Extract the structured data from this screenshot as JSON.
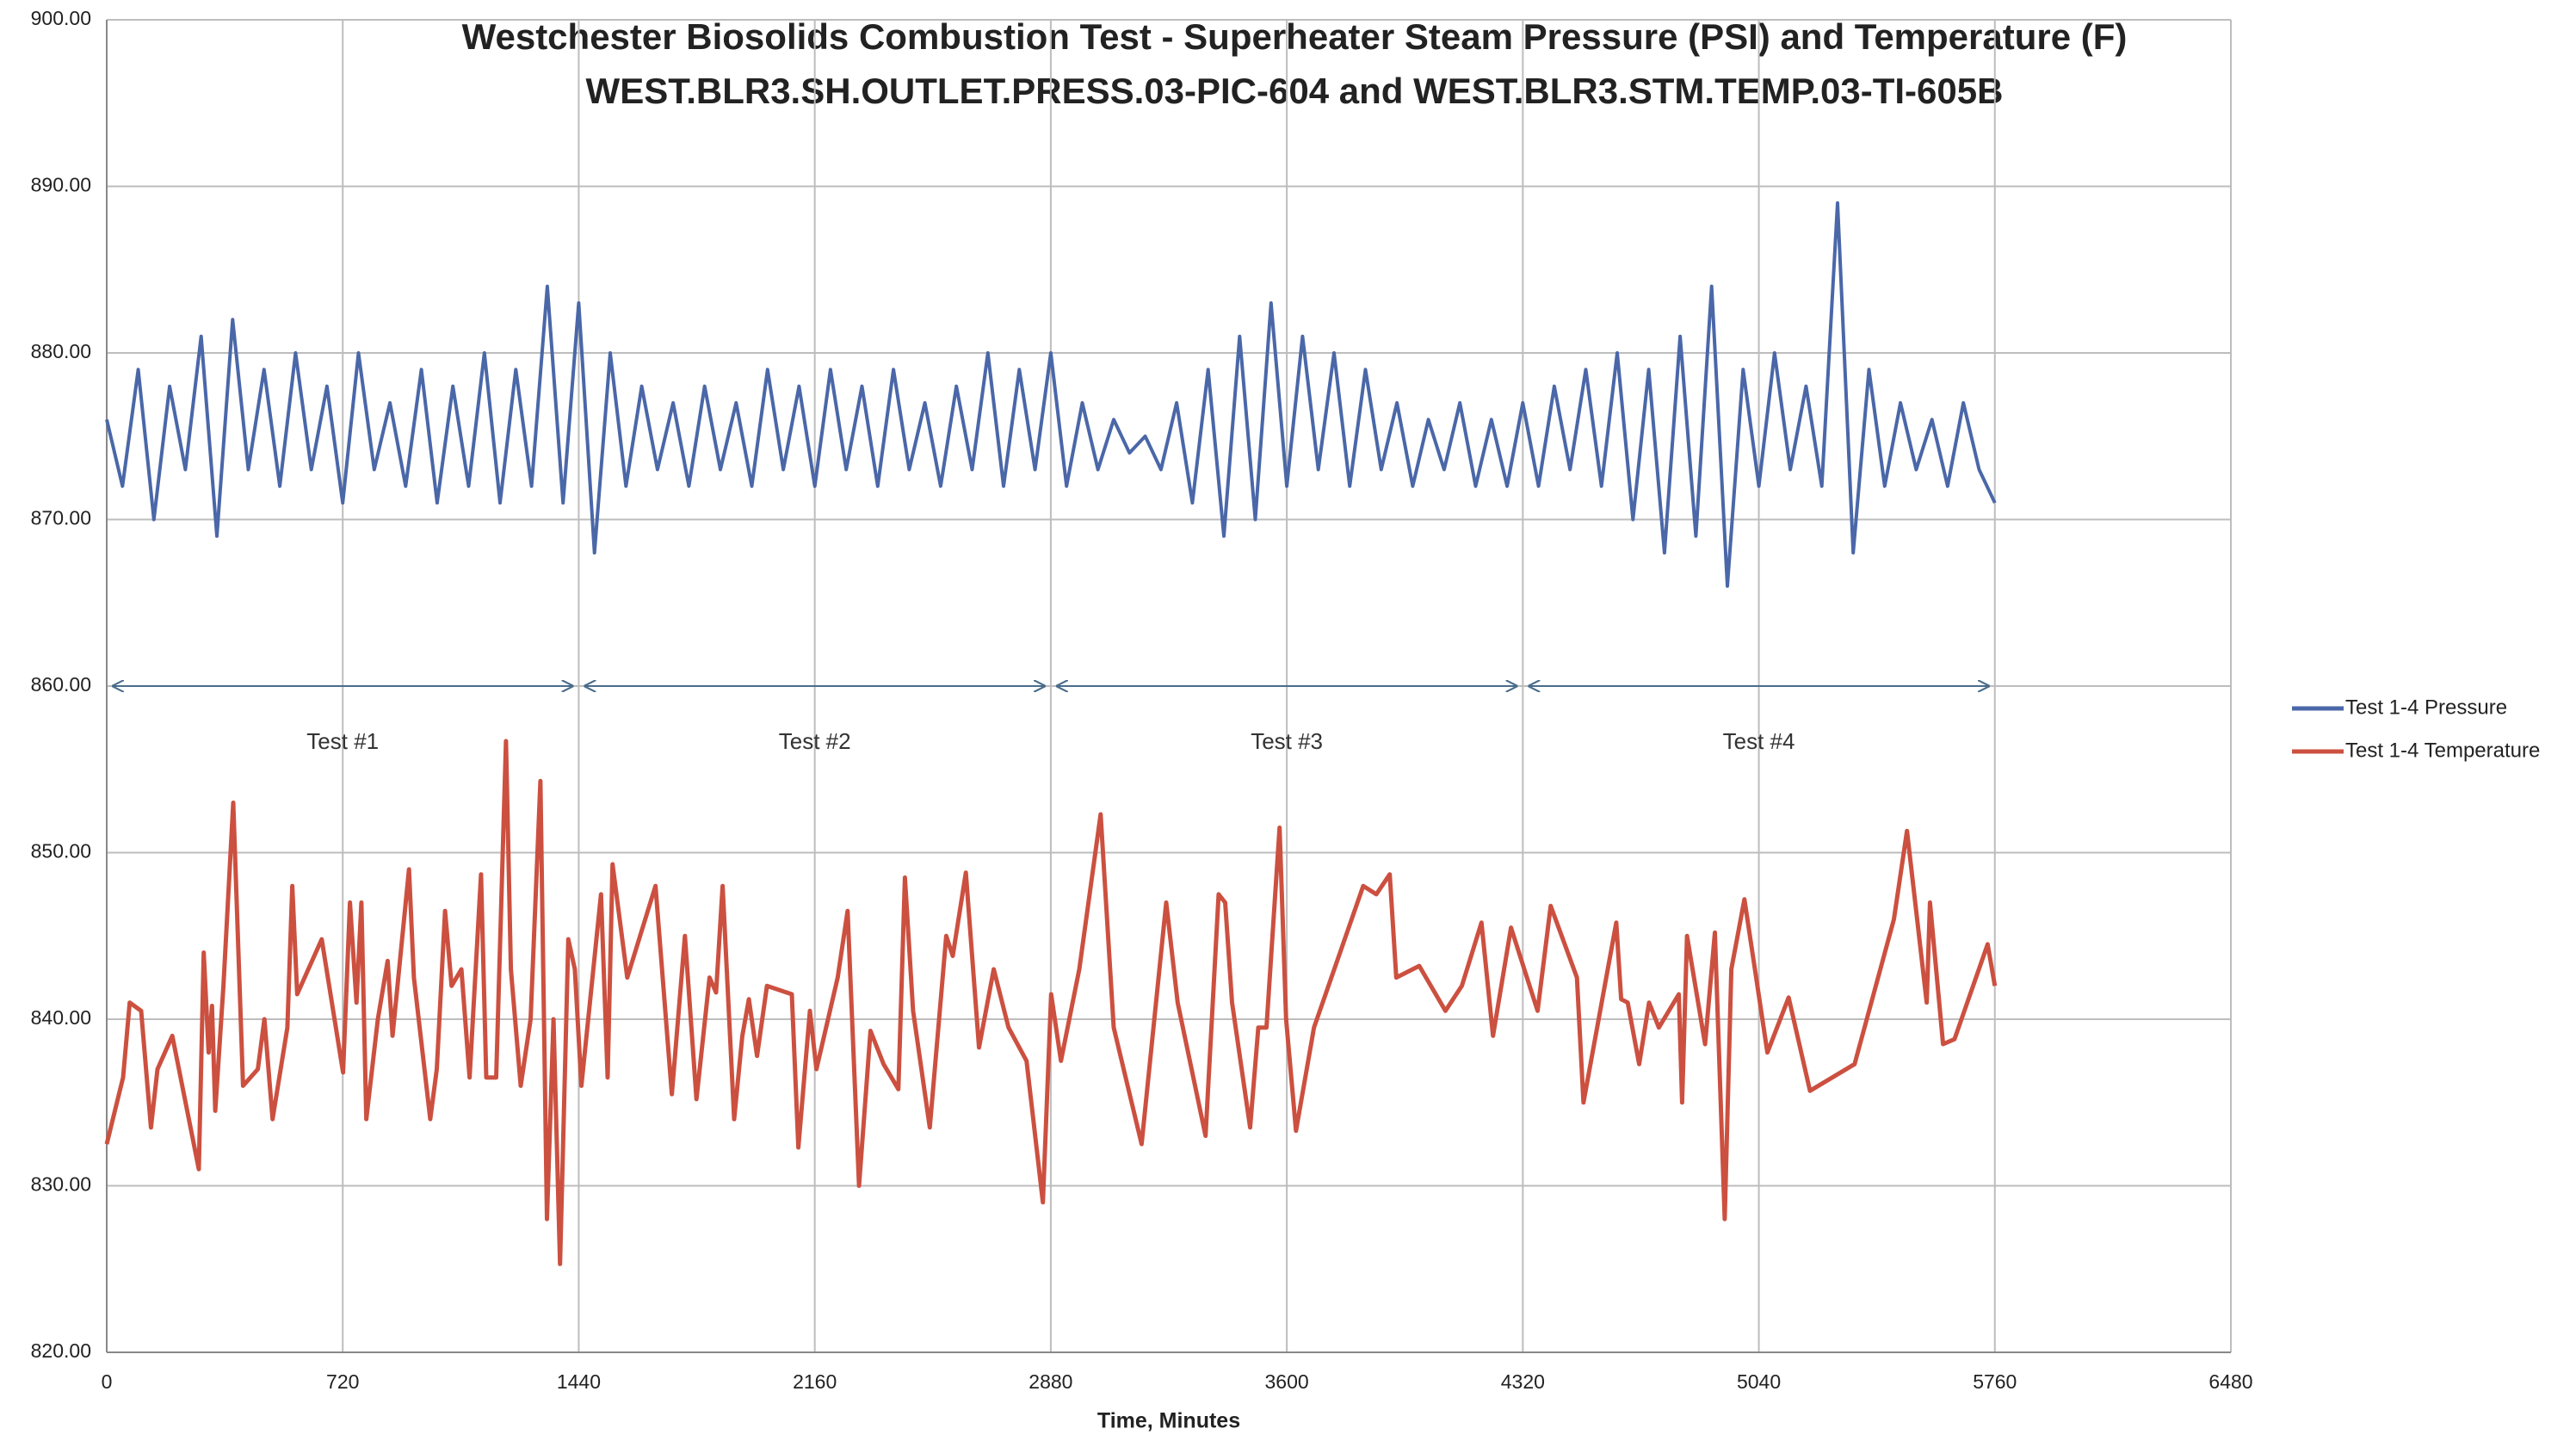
{
  "chart_data": {
    "type": "line",
    "title": "Westchester Biosolids Combustion Test - Superheater Steam Pressure (PSI) and Temperature (F)",
    "subtitle": "WEST.BLR3.SH.OUTLET.PRESS.03-PIC-604 and WEST.BLR3.STM.TEMP.03-TI-605B",
    "x_label": "Time, Minutes",
    "xlim": [
      0,
      6480
    ],
    "xticks": [
      0,
      720,
      1440,
      2160,
      2880,
      3600,
      4320,
      5040,
      5760,
      6480
    ],
    "ylim": [
      820,
      900
    ],
    "yticks": [
      {
        "value": 820,
        "label": "820.00"
      },
      {
        "value": 830,
        "label": "830.00"
      },
      {
        "value": 840,
        "label": "840.00"
      },
      {
        "value": 850,
        "label": "850.00"
      },
      {
        "value": 860,
        "label": "860.00"
      },
      {
        "value": 870,
        "label": "870.00"
      },
      {
        "value": 880,
        "label": "880.00"
      },
      {
        "value": 890,
        "label": "890.00"
      },
      {
        "value": 900,
        "label": "900.00"
      }
    ],
    "grid": true,
    "legend": "right",
    "series": [
      {
        "name": "Test 1-4 Pressure",
        "color": "#4a67a8",
        "x": [
          0,
          48,
          96,
          144,
          192,
          240,
          288,
          336,
          384,
          432,
          480,
          528,
          576,
          624,
          672,
          720,
          768,
          816,
          864,
          912,
          960,
          1008,
          1056,
          1104,
          1152,
          1200,
          1248,
          1296,
          1344,
          1392,
          1440,
          1488,
          1536,
          1584,
          1632,
          1680,
          1728,
          1776,
          1824,
          1872,
          1920,
          1968,
          2016,
          2064,
          2112,
          2160,
          2208,
          2256,
          2304,
          2352,
          2400,
          2448,
          2496,
          2544,
          2592,
          2640,
          2688,
          2736,
          2784,
          2832,
          2880,
          2928,
          2976,
          3024,
          3072,
          3120,
          3168,
          3216,
          3264,
          3312,
          3360,
          3408,
          3456,
          3504,
          3552,
          3600,
          3648,
          3696,
          3744,
          3792,
          3840,
          3888,
          3936,
          3984,
          4032,
          4080,
          4128,
          4176,
          4224,
          4272,
          4320,
          4368,
          4416,
          4464,
          4512,
          4560,
          4608,
          4656,
          4704,
          4752,
          4800,
          4848,
          4896,
          4944,
          4992,
          5040,
          5088,
          5136,
          5184,
          5232,
          5280,
          5328,
          5376,
          5424,
          5472,
          5520,
          5568,
          5616,
          5664,
          5712,
          5760
        ],
        "values": [
          876,
          872,
          879,
          870,
          878,
          873,
          881,
          869,
          882,
          873,
          879,
          872,
          880,
          873,
          878,
          871,
          880,
          873,
          877,
          872,
          879,
          871,
          878,
          872,
          880,
          871,
          879,
          872,
          884,
          871,
          883,
          868,
          880,
          872,
          878,
          873,
          877,
          872,
          878,
          873,
          877,
          872,
          879,
          873,
          878,
          872,
          879,
          873,
          878,
          872,
          879,
          873,
          877,
          872,
          878,
          873,
          880,
          872,
          879,
          873,
          880,
          872,
          877,
          873,
          876,
          874,
          875,
          873,
          877,
          871,
          879,
          869,
          881,
          870,
          883,
          872,
          881,
          873,
          880,
          872,
          879,
          873,
          877,
          872,
          876,
          873,
          877,
          872,
          876,
          872,
          877,
          872,
          878,
          873,
          879,
          872,
          880,
          870,
          879,
          868,
          881,
          869,
          884,
          866,
          879,
          872,
          880,
          873,
          878,
          872,
          889,
          868,
          879,
          872,
          877,
          873,
          876,
          872,
          877,
          873,
          871
        ]
      },
      {
        "name": "Test 1-4 Temperature",
        "color": "#cc5040",
        "x": [
          0,
          50,
          70,
          105,
          135,
          155,
          200,
          281,
          296,
          311,
          321,
          331,
          356,
          386,
          416,
          461,
          481,
          506,
          551,
          566,
          581,
          656,
          721,
          742,
          762,
          777,
          792,
          827,
          857,
          872,
          922,
          937,
          987,
          1007,
          1032,
          1052,
          1082,
          1107,
          1142,
          1158,
          1188,
          1218,
          1233,
          1263,
          1293,
          1323,
          1343,
          1363,
          1383,
          1408,
          1428,
          1448,
          1508,
          1528,
          1543,
          1588,
          1674,
          1724,
          1764,
          1799,
          1839,
          1859,
          1879,
          1914,
          1939,
          1959,
          1984,
          2014,
          2090,
          2110,
          2145,
          2165,
          2230,
          2260,
          2295,
          2330,
          2370,
          2415,
          2435,
          2460,
          2511,
          2561,
          2581,
          2621,
          2661,
          2706,
          2751,
          2806,
          2856,
          2881,
          2911,
          2967,
          3032,
          3072,
          3157,
          3232,
          3267,
          3352,
          3392,
          3412,
          3433,
          3488,
          3513,
          3538,
          3578,
          3598,
          3628,
          3683,
          3833,
          3873,
          3914,
          3934,
          4004,
          4084,
          4134,
          4194,
          4229,
          4284,
          4365,
          4405,
          4485,
          4505,
          4605,
          4620,
          4640,
          4675,
          4705,
          4735,
          4796,
          4806,
          4821,
          4876,
          4906,
          4936,
          4956,
          4996,
          5066,
          5131,
          5196,
          5332,
          5452,
          5492,
          5552,
          5562,
          5602,
          5637,
          5738,
          5760
        ],
        "values": [
          832.5,
          836.5,
          841,
          840.5,
          833.5,
          837,
          839,
          831,
          844,
          838,
          840.8,
          834.5,
          842,
          853,
          836,
          837,
          840,
          834,
          839.5,
          848,
          841.5,
          844.8,
          836.8,
          847,
          841,
          847,
          834,
          840,
          843.5,
          839,
          849,
          842.5,
          834,
          837,
          846.5,
          842,
          843,
          836.5,
          848.7,
          836.5,
          836.5,
          856.7,
          843,
          836,
          840,
          854.3,
          828,
          840,
          825.3,
          844.8,
          843,
          836,
          847.5,
          836.5,
          849.3,
          842.5,
          848,
          835.5,
          845,
          835.2,
          842.5,
          841.6,
          848,
          834,
          839,
          841.2,
          837.8,
          842,
          841.5,
          832.3,
          840.5,
          837,
          842.5,
          846.5,
          830,
          839.3,
          837.3,
          835.8,
          848.5,
          840.5,
          833.5,
          845,
          843.8,
          848.8,
          838.3,
          843,
          839.5,
          837.5,
          829,
          841.5,
          837.5,
          843,
          852.3,
          839.5,
          832.5,
          847,
          841,
          833,
          847.5,
          847,
          841,
          833.5,
          839.5,
          839.5,
          851.5,
          840,
          833.3,
          839.5,
          848,
          847.5,
          848.7,
          842.5,
          843.2,
          840.5,
          842,
          845.8,
          839,
          845.5,
          840.5,
          846.8,
          842.5,
          835,
          845.8,
          841.2,
          841,
          837.3,
          841,
          839.5,
          841.5,
          835,
          845,
          838.5,
          845.2,
          828,
          843,
          847.2,
          838,
          841.3,
          835.7,
          837.3,
          846,
          851.3,
          841,
          847,
          838.5,
          838.8,
          844.5,
          842
        ]
      }
    ],
    "annotations": [
      {
        "text": "Test #1",
        "start": 0,
        "end": 1440,
        "y": 860
      },
      {
        "text": "Test #2",
        "start": 1440,
        "end": 2880,
        "y": 860
      },
      {
        "text": "Test #3",
        "start": 2880,
        "end": 4320,
        "y": 860
      },
      {
        "text": "Test #4",
        "start": 4320,
        "end": 5760,
        "y": 860
      }
    ]
  }
}
